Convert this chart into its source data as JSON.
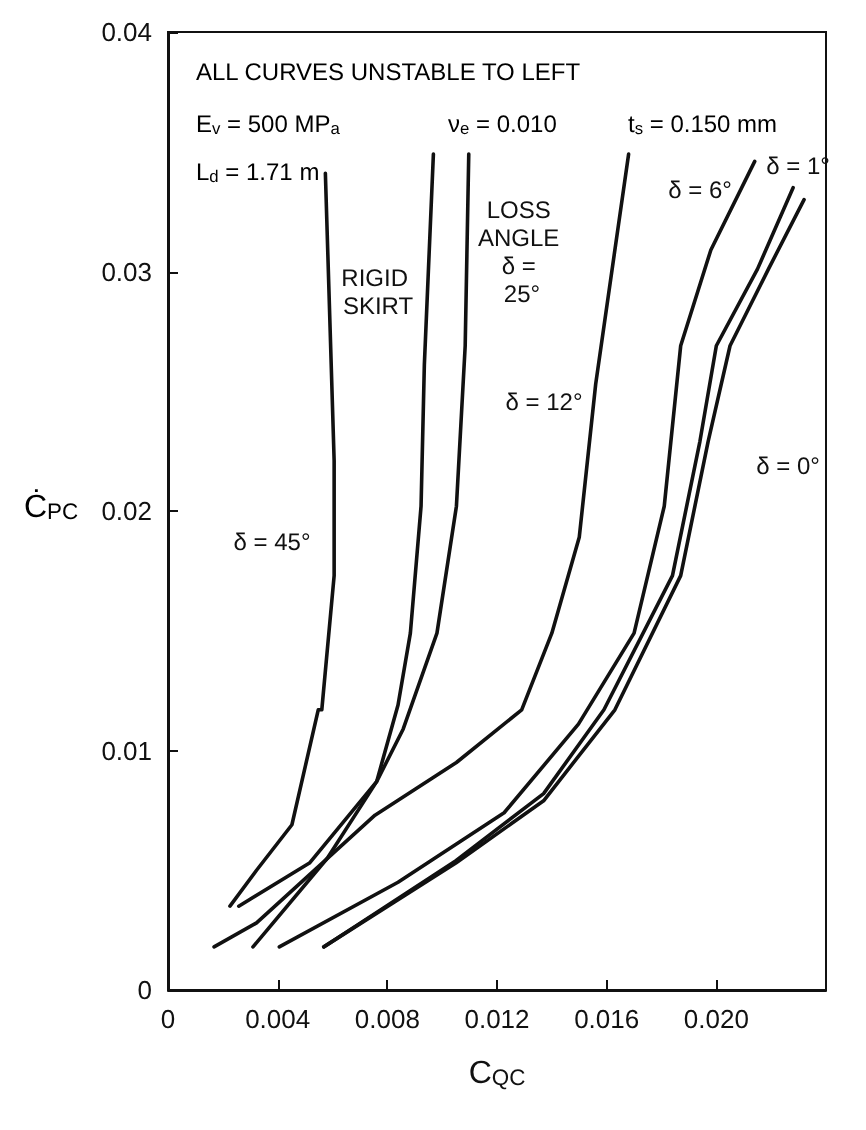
{
  "chart_data": {
    "type": "line",
    "xlabel": "C$_{QC}$",
    "ylabel": "Ċ$_{PC}$",
    "xlim": [
      0,
      0.024
    ],
    "xticks": [
      0,
      0.004,
      0.008,
      0.012,
      {
        "value": 0.016,
        "label": "0.016"
      },
      {
        "value": 0.02,
        "label": "0.020"
      }
    ],
    "ylim": [
      0,
      0.04
    ],
    "yticks": [
      0,
      0.01,
      0.02,
      0.03,
      0.04
    ],
    "grid": false,
    "marker": "none",
    "line_style": "solid",
    "series": [
      {
        "name": "δ = 45°",
        "color": "#111111",
        "x": [
          0.00226,
          0.00323,
          0.00452,
          0.00548,
          0.00561,
          0.00606,
          0.00606,
          0.00574
        ],
        "values": [
          0.0035,
          0.005,
          0.0069,
          0.0117,
          0.0117,
          0.0173,
          0.0221,
          0.0341
        ]
      },
      {
        "name": "RIGID SKIRT",
        "color": "#111111",
        "x": [
          0.0031,
          0.00581,
          0.00761,
          0.00839,
          0.00884,
          0.00923,
          0.00935,
          0.00968
        ],
        "values": [
          0.0018,
          0.0055,
          0.0087,
          0.0119,
          0.0149,
          0.0202,
          0.0261,
          0.0349
        ]
      },
      {
        "name": "LOSS ANGLE δ = 25°",
        "color": "#111111",
        "x": [
          0.00258,
          0.00516,
          0.00761,
          0.00858,
          0.00981,
          0.01052,
          0.01084,
          0.01097
        ],
        "values": [
          0.0035,
          0.0053,
          0.0087,
          0.0109,
          0.0149,
          0.0202,
          0.0269,
          0.0349
        ]
      },
      {
        "name": "δ = 12°",
        "color": "#111111",
        "x": [
          0.00168,
          0.00323,
          0.00755,
          0.01052,
          0.0129,
          0.014,
          0.015,
          0.0156,
          0.0168
        ],
        "values": [
          0.0018,
          0.0028,
          0.0073,
          0.0095,
          0.0117,
          0.0149,
          0.0189,
          0.0253,
          0.0349
        ]
      },
      {
        "name": "δ = 6°",
        "color": "#111111",
        "x": [
          0.00406,
          0.00839,
          0.01226,
          0.01497,
          0.017,
          0.0181,
          0.0187,
          0.0198,
          0.0214
        ],
        "values": [
          0.0018,
          0.0045,
          0.0074,
          0.0111,
          0.0149,
          0.0202,
          0.0269,
          0.0309,
          0.0346
        ]
      },
      {
        "name": "δ = 1°",
        "color": "#111111",
        "x": [
          0.00568,
          0.0105,
          0.0137,
          0.0159,
          0.0184,
          0.0194,
          0.02,
          0.0215,
          0.0228
        ],
        "values": [
          0.0018,
          0.0054,
          0.0082,
          0.0117,
          0.0173,
          0.0229,
          0.0269,
          0.0301,
          0.0335
        ]
      },
      {
        "name": "δ = 0°",
        "color": "#111111",
        "x": [
          0.00568,
          0.0105,
          0.0137,
          0.0163,
          0.0187,
          0.0197,
          0.0205,
          0.0219,
          0.0232
        ],
        "values": [
          0.0018,
          0.0053,
          0.0079,
          0.0117,
          0.0173,
          0.0229,
          0.0269,
          0.0301,
          0.033
        ]
      }
    ],
    "annotations": [
      "ALL CURVES UNSTABLE TO LEFT",
      "E$_{v}$ = 500 MP$_{a}$",
      "ν$_{e}$ = 0.010",
      "t$_{s}$ = 0.150 mm",
      "L$_{d}$ = 1.71 m"
    ]
  }
}
